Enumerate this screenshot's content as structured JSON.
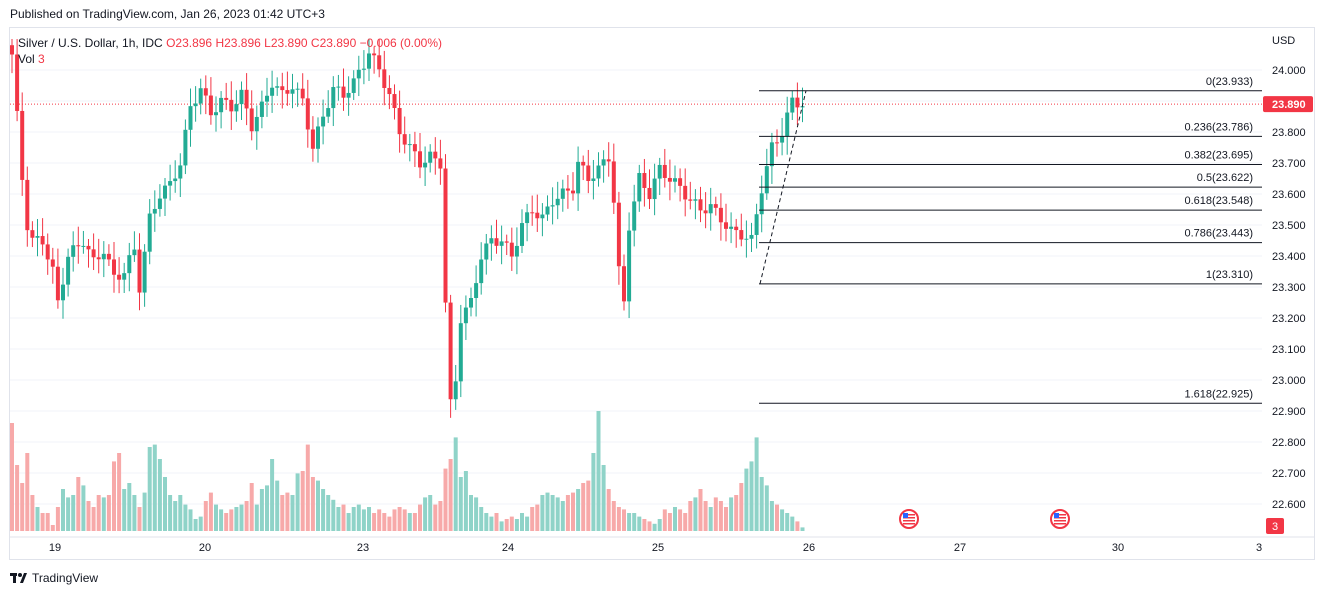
{
  "header": {
    "published": "Published on TradingView.com, Jan 26, 2023 01:42 UTC+3"
  },
  "legend": {
    "title": "Silver / U.S. Dollar, 1h, IDC",
    "o_label": "O",
    "o": "23.896",
    "h_label": "H",
    "h": "23.896",
    "l_label": "L",
    "l": "23.890",
    "c_label": "C",
    "c": "23.890",
    "change": "−0.006 (0.00%)",
    "vol_label": "Vol",
    "vol": "3"
  },
  "footer": {
    "brand": "TradingView"
  },
  "colors": {
    "up": "#22ab94",
    "down": "#f23645",
    "vol_up": "#8fd3c8",
    "vol_down": "#f7a9a9",
    "fib": "#131722",
    "grid": "#f0f3fa"
  },
  "chart_data": {
    "type": "candlestick",
    "symbol": "Silver / U.S. Dollar",
    "interval": "1h",
    "currency": "USD",
    "last_price": "23.890",
    "volume_badge": "3",
    "ylim": [
      22.55,
      24.1
    ],
    "y_ticks": [
      "24.000",
      "23.900",
      "23.800",
      "23.700",
      "23.600",
      "23.500",
      "23.400",
      "23.300",
      "23.200",
      "23.100",
      "23.000",
      "22.900",
      "22.800",
      "22.700",
      "22.600"
    ],
    "x_ticks": [
      "19",
      "20",
      "23",
      "24",
      "25",
      "26",
      "27",
      "30",
      "3"
    ],
    "fibonacci": [
      {
        "ratio": "0",
        "price": 23.933,
        "label": "0(23.933)"
      },
      {
        "ratio": "0.236",
        "price": 23.786,
        "label": "0.236(23.786)"
      },
      {
        "ratio": "0.382",
        "price": 23.695,
        "label": "0.382(23.695)"
      },
      {
        "ratio": "0.5",
        "price": 23.622,
        "label": "0.5(23.622)"
      },
      {
        "ratio": "0.618",
        "price": 23.548,
        "label": "0.618(23.548)"
      },
      {
        "ratio": "0.786",
        "price": 23.443,
        "label": "0.786(23.443)"
      },
      {
        "ratio": "1",
        "price": 23.31,
        "label": "1(23.310)"
      },
      {
        "ratio": "1.618",
        "price": 22.925,
        "label": "1.618(22.925)"
      }
    ],
    "anchors": [
      [
        0,
        24.05
      ],
      [
        1,
        23.85
      ],
      [
        2,
        23.65
      ],
      [
        3,
        23.5
      ],
      [
        4,
        23.45
      ],
      [
        6,
        23.45
      ],
      [
        8,
        23.35
      ],
      [
        9,
        23.25
      ],
      [
        11,
        23.4
      ],
      [
        14,
        23.45
      ],
      [
        16,
        23.38
      ],
      [
        18,
        23.42
      ],
      [
        20,
        23.33
      ],
      [
        22,
        23.35
      ],
      [
        24,
        23.42
      ],
      [
        25,
        23.3
      ],
      [
        27,
        23.52
      ],
      [
        29,
        23.6
      ],
      [
        31,
        23.63
      ],
      [
        33,
        23.7
      ],
      [
        35,
        23.88
      ],
      [
        37,
        23.94
      ],
      [
        39,
        23.86
      ],
      [
        41,
        23.9
      ],
      [
        43,
        23.88
      ],
      [
        45,
        23.92
      ],
      [
        47,
        23.82
      ],
      [
        49,
        23.88
      ],
      [
        51,
        23.96
      ],
      [
        53,
        23.92
      ],
      [
        55,
        23.95
      ],
      [
        57,
        23.9
      ],
      [
        59,
        23.75
      ],
      [
        61,
        23.85
      ],
      [
        63,
        23.94
      ],
      [
        65,
        23.92
      ],
      [
        67,
        23.96
      ],
      [
        69,
        24.02
      ],
      [
        70,
        24.06
      ],
      [
        72,
        24.0
      ],
      [
        74,
        23.92
      ],
      [
        76,
        23.8
      ],
      [
        78,
        23.75
      ],
      [
        80,
        23.7
      ],
      [
        82,
        23.72
      ],
      [
        84,
        23.7
      ],
      [
        85,
        23.25
      ],
      [
        86,
        22.92
      ],
      [
        87,
        23.0
      ],
      [
        88,
        23.2
      ],
      [
        90,
        23.25
      ],
      [
        92,
        23.4
      ],
      [
        94,
        23.45
      ],
      [
        96,
        23.45
      ],
      [
        98,
        23.4
      ],
      [
        100,
        23.5
      ],
      [
        102,
        23.55
      ],
      [
        104,
        23.52
      ],
      [
        106,
        23.58
      ],
      [
        108,
        23.6
      ],
      [
        110,
        23.62
      ],
      [
        111,
        23.7
      ],
      [
        113,
        23.65
      ],
      [
        115,
        23.68
      ],
      [
        117,
        23.72
      ],
      [
        118,
        23.58
      ],
      [
        119,
        23.35
      ],
      [
        120,
        23.25
      ],
      [
        121,
        23.5
      ],
      [
        123,
        23.65
      ],
      [
        125,
        23.6
      ],
      [
        127,
        23.68
      ],
      [
        129,
        23.65
      ],
      [
        131,
        23.62
      ],
      [
        133,
        23.58
      ],
      [
        135,
        23.55
      ],
      [
        137,
        23.56
      ],
      [
        139,
        23.52
      ],
      [
        141,
        23.48
      ],
      [
        143,
        23.47
      ],
      [
        145,
        23.45
      ],
      [
        147,
        23.62
      ],
      [
        149,
        23.75
      ],
      [
        151,
        23.8
      ],
      [
        152,
        23.85
      ],
      [
        153,
        23.9
      ],
      [
        155,
        23.89
      ]
    ],
    "volume": [
      [
        0,
        0.9
      ],
      [
        1,
        0.55
      ],
      [
        2,
        0.4
      ],
      [
        3,
        0.65
      ],
      [
        4,
        0.3
      ],
      [
        5,
        0.2
      ],
      [
        6,
        0.15
      ],
      [
        7,
        0.15
      ],
      [
        8,
        0.05
      ],
      [
        9,
        0.2
      ],
      [
        10,
        0.35
      ],
      [
        11,
        0.28
      ],
      [
        12,
        0.3
      ],
      [
        13,
        0.45
      ],
      [
        14,
        0.38
      ],
      [
        15,
        0.25
      ],
      [
        16,
        0.2
      ],
      [
        17,
        0.3
      ],
      [
        18,
        0.28
      ],
      [
        19,
        0.3
      ],
      [
        20,
        0.58
      ],
      [
        21,
        0.65
      ],
      [
        22,
        0.35
      ],
      [
        23,
        0.4
      ],
      [
        24,
        0.3
      ],
      [
        25,
        0.2
      ],
      [
        26,
        0.32
      ],
      [
        27,
        0.7
      ],
      [
        28,
        0.72
      ],
      [
        29,
        0.6
      ],
      [
        30,
        0.45
      ],
      [
        31,
        0.3
      ],
      [
        32,
        0.25
      ],
      [
        33,
        0.3
      ],
      [
        34,
        0.22
      ],
      [
        35,
        0.18
      ],
      [
        36,
        0.1
      ],
      [
        37,
        0.12
      ],
      [
        38,
        0.25
      ],
      [
        39,
        0.32
      ],
      [
        40,
        0.22
      ],
      [
        41,
        0.18
      ],
      [
        42,
        0.15
      ],
      [
        43,
        0.18
      ],
      [
        44,
        0.2
      ],
      [
        45,
        0.22
      ],
      [
        46,
        0.25
      ],
      [
        47,
        0.4
      ],
      [
        48,
        0.22
      ],
      [
        49,
        0.35
      ],
      [
        50,
        0.38
      ],
      [
        51,
        0.6
      ],
      [
        52,
        0.42
      ],
      [
        53,
        0.3
      ],
      [
        54,
        0.32
      ],
      [
        55,
        0.3
      ],
      [
        56,
        0.48
      ],
      [
        57,
        0.5
      ],
      [
        58,
        0.72
      ],
      [
        59,
        0.45
      ],
      [
        60,
        0.42
      ],
      [
        61,
        0.35
      ],
      [
        62,
        0.3
      ],
      [
        63,
        0.26
      ],
      [
        64,
        0.2
      ],
      [
        65,
        0.22
      ],
      [
        66,
        0.15
      ],
      [
        67,
        0.2
      ],
      [
        68,
        0.22
      ],
      [
        69,
        0.18
      ],
      [
        70,
        0.2
      ],
      [
        71,
        0.15
      ],
      [
        72,
        0.18
      ],
      [
        73,
        0.15
      ],
      [
        74,
        0.12
      ],
      [
        75,
        0.18
      ],
      [
        76,
        0.2
      ],
      [
        77,
        0.18
      ],
      [
        78,
        0.15
      ],
      [
        79,
        0.15
      ],
      [
        80,
        0.22
      ],
      [
        81,
        0.28
      ],
      [
        82,
        0.3
      ],
      [
        83,
        0.22
      ],
      [
        84,
        0.25
      ],
      [
        85,
        0.52
      ],
      [
        86,
        0.6
      ],
      [
        87,
        0.78
      ],
      [
        88,
        0.45
      ],
      [
        89,
        0.5
      ],
      [
        90,
        0.3
      ],
      [
        91,
        0.28
      ],
      [
        92,
        0.2
      ],
      [
        93,
        0.15
      ],
      [
        94,
        0.12
      ],
      [
        95,
        0.15
      ],
      [
        96,
        0.08
      ],
      [
        97,
        0.1
      ],
      [
        98,
        0.12
      ],
      [
        99,
        0.1
      ],
      [
        100,
        0.15
      ],
      [
        101,
        0.12
      ],
      [
        102,
        0.2
      ],
      [
        103,
        0.22
      ],
      [
        104,
        0.3
      ],
      [
        105,
        0.32
      ],
      [
        106,
        0.3
      ],
      [
        107,
        0.28
      ],
      [
        108,
        0.25
      ],
      [
        109,
        0.3
      ],
      [
        110,
        0.32
      ],
      [
        111,
        0.35
      ],
      [
        112,
        0.4
      ],
      [
        113,
        0.42
      ],
      [
        114,
        0.65
      ],
      [
        115,
        1.0
      ],
      [
        116,
        0.55
      ],
      [
        117,
        0.35
      ],
      [
        118,
        0.25
      ],
      [
        119,
        0.2
      ],
      [
        120,
        0.18
      ],
      [
        121,
        0.15
      ],
      [
        122,
        0.15
      ],
      [
        123,
        0.12
      ],
      [
        124,
        0.1
      ],
      [
        125,
        0.08
      ],
      [
        126,
        0.06
      ],
      [
        127,
        0.1
      ],
      [
        128,
        0.18
      ],
      [
        129,
        0.15
      ],
      [
        130,
        0.2
      ],
      [
        131,
        0.18
      ],
      [
        132,
        0.15
      ],
      [
        133,
        0.25
      ],
      [
        134,
        0.28
      ],
      [
        135,
        0.35
      ],
      [
        136,
        0.25
      ],
      [
        137,
        0.2
      ],
      [
        138,
        0.28
      ],
      [
        139,
        0.25
      ],
      [
        140,
        0.2
      ],
      [
        141,
        0.28
      ],
      [
        142,
        0.3
      ],
      [
        143,
        0.4
      ],
      [
        144,
        0.52
      ],
      [
        145,
        0.58
      ],
      [
        146,
        0.78
      ],
      [
        147,
        0.45
      ],
      [
        148,
        0.38
      ],
      [
        149,
        0.25
      ],
      [
        150,
        0.22
      ],
      [
        151,
        0.18
      ],
      [
        152,
        0.15
      ],
      [
        153,
        0.12
      ],
      [
        154,
        0.08
      ],
      [
        155,
        0.03
      ]
    ]
  }
}
